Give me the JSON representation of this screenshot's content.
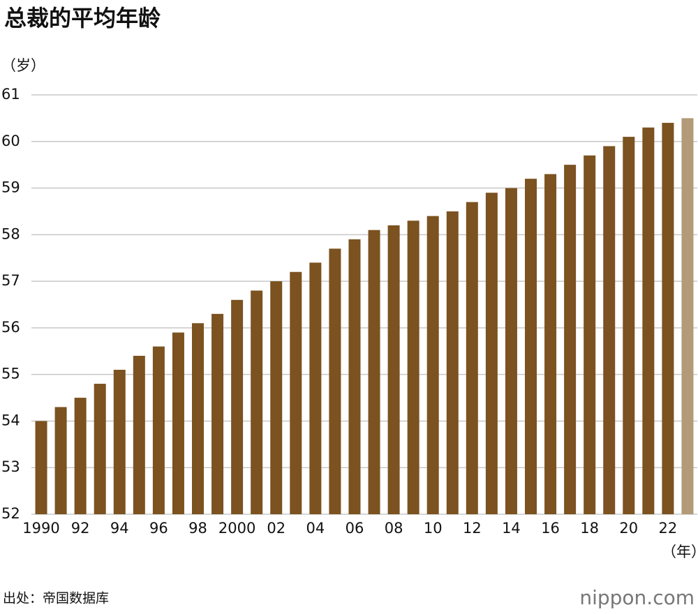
{
  "chart_data": {
    "type": "bar",
    "title": "总裁的平均年龄",
    "y_unit": "（岁）",
    "x_unit": "（年）",
    "categories": [
      "1990",
      null,
      "92",
      null,
      "94",
      null,
      "96",
      null,
      "98",
      null,
      "2000",
      null,
      "02",
      null,
      "04",
      null,
      "06",
      null,
      "08",
      null,
      "10",
      null,
      "12",
      null,
      "14",
      null,
      "16",
      null,
      "18",
      null,
      "20",
      null,
      "22",
      null
    ],
    "values": [
      54.0,
      54.3,
      54.5,
      54.8,
      55.1,
      55.4,
      55.6,
      55.9,
      56.1,
      56.3,
      56.6,
      56.8,
      57.0,
      57.2,
      57.4,
      57.7,
      57.9,
      58.1,
      58.2,
      58.3,
      58.4,
      58.5,
      58.7,
      58.9,
      59.0,
      59.2,
      59.3,
      59.5,
      59.7,
      59.9,
      60.1,
      60.3,
      60.4,
      60.5
    ],
    "colors": [
      "#7b5220",
      "#7b5220",
      "#7b5220",
      "#7b5220",
      "#7b5220",
      "#7b5220",
      "#7b5220",
      "#7b5220",
      "#7b5220",
      "#7b5220",
      "#7b5220",
      "#7b5220",
      "#7b5220",
      "#7b5220",
      "#7b5220",
      "#7b5220",
      "#7b5220",
      "#7b5220",
      "#7b5220",
      "#7b5220",
      "#7b5220",
      "#7b5220",
      "#7b5220",
      "#7b5220",
      "#7b5220",
      "#7b5220",
      "#7b5220",
      "#7b5220",
      "#7b5220",
      "#7b5220",
      "#7b5220",
      "#7b5220",
      "#7b5220",
      "#b39a78"
    ],
    "ylim": [
      52,
      61
    ],
    "yticks": [
      52,
      53,
      54,
      55,
      56,
      57,
      58,
      59,
      60,
      61
    ],
    "grid": true,
    "source": "出处：帝国数据库",
    "brand": "nippon.com"
  }
}
